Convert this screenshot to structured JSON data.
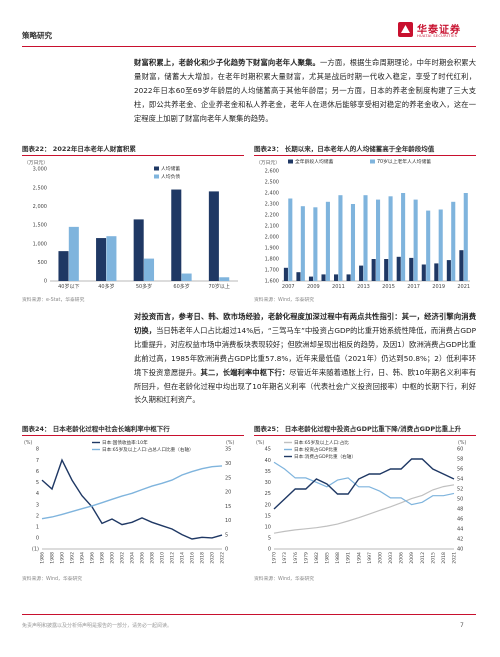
{
  "header": {
    "section": "策略研究",
    "brand_cn": "华泰证券",
    "brand_en": "HUATAI SECURITIES"
  },
  "para1": {
    "bold": "财富积累上，老龄化和少子化趋势下财富向老年人聚集。",
    "text": "一方面，根据生命周期理论，中年时期会积累大量财富，储蓄大大增加，在老年时期积累大量财富，尤其是战后时期一代收入稳定，享受了时代红利，2022年日本60至69岁年龄层的人均储蓄高于其他年龄层；另一方面，日本的养老金制度构建了三大支柱，即公共养老金、企业养老金和私人养老金，老年人在退休后能够享受相对稳定的养老金收入，这在一定程度上加剧了财富向老年人聚集的趋势。"
  },
  "fig22": {
    "title": "图表22：  2022年日本老年人财富积累",
    "unit": "（万日元）",
    "source": "资料来源：e-Stat，华泰研究",
    "chart_data": {
      "type": "bar",
      "categories": [
        "40岁以下",
        "40多岁",
        "50多岁",
        "60多岁",
        "70岁以上"
      ],
      "series": [
        {
          "name": "人均储蓄",
          "color": "#1f3864",
          "values": [
            800,
            1150,
            1650,
            2450,
            2400
          ]
        },
        {
          "name": "人均负债",
          "color": "#7fb4dd",
          "values": [
            1450,
            1200,
            600,
            200,
            100
          ]
        }
      ],
      "ylim": [
        0,
        3000
      ],
      "yticks": [
        "3,000",
        "2,500",
        "2,000",
        "1,500",
        "1,000",
        "500",
        "0"
      ],
      "legend": "top-right"
    }
  },
  "fig23": {
    "title": "图表23：  长期以来，日本老年人的人均储蓄高于全年龄段均值",
    "unit": "（万日元）",
    "source": "资料来源：Wind，华泰研究",
    "chart_data": {
      "type": "bar",
      "categories": [
        "2007",
        "2008",
        "2009",
        "2010",
        "2011",
        "2012",
        "2013",
        "2014",
        "2015",
        "2016",
        "2017",
        "2018",
        "2019",
        "2020",
        "2021"
      ],
      "xticks": [
        "2007",
        "2009",
        "2011",
        "2013",
        "2015",
        "2017",
        "2019",
        "2021"
      ],
      "series": [
        {
          "name": "全年龄段人均储蓄",
          "color": "#1f3864",
          "values": [
            1720,
            1680,
            1640,
            1660,
            1660,
            1660,
            1740,
            1800,
            1800,
            1820,
            1810,
            1750,
            1760,
            1790,
            1880
          ]
        },
        {
          "name": "70岁以上老年人人均储蓄",
          "color": "#7fb4dd",
          "values": [
            2350,
            2280,
            2270,
            2320,
            2380,
            2300,
            2380,
            2340,
            2370,
            2400,
            2340,
            2240,
            2250,
            2320,
            2400
          ]
        }
      ],
      "ylim": [
        1600,
        2600
      ],
      "yticks": [
        "2,600",
        "2,500",
        "2,400",
        "2,300",
        "2,200",
        "2,100",
        "2,000",
        "1,900",
        "1,800",
        "1,700",
        "1,600"
      ],
      "legend": "top"
    }
  },
  "para2": {
    "text1": "对投资而言，参考日、韩、欧市场经验，老龄化程度加深过程中有两点共性指引：其一，经济引擎向消费切换，",
    "text2": "当日韩老年人口占比超过14%后，“三驾马车”中投资占GDP的比重开始系统性降低，而消费占GDP比重提升，对应权益市场中消费板块表现较好；但欧洲却呈现出相反的趋势，及因1）欧洲消费占GDP比重此前过高，1985年欧洲消费占GDP比重57.8%，近年来最低值（2021年）仍达到50.8%；2）低利率环境下投资意愿提升。",
    "bold2": "其二，长端利率中枢下行：",
    "text3": "尽管近年来随着通胀上行，日、韩、欧10年期名义利率有所回升，但在老龄化过程中均出现了10年期名义利率（代表社会广义投资回报率）中枢的长期下行，利好长久期和红利资产。"
  },
  "fig24": {
    "title": "图表24：  日本老龄化过程中社会长端利率中枢下行",
    "unit_left": "(%)",
    "unit_right": "(%)",
    "source": "资料来源：Wind，华泰研究",
    "chart_data": {
      "type": "line",
      "x": [
        "1986",
        "1988",
        "1990",
        "1992",
        "1994",
        "1996",
        "1998",
        "2000",
        "2002",
        "2004",
        "2006",
        "2008",
        "2010",
        "2012",
        "2014",
        "2016",
        "2018",
        "2020",
        "2022"
      ],
      "series": [
        {
          "name": "日本:国债收益率:10年",
          "axis": "left",
          "color": "#1f3864",
          "values": [
            5.2,
            4.4,
            7.0,
            5.2,
            3.8,
            2.8,
            1.3,
            1.7,
            1.2,
            1.4,
            1.8,
            1.4,
            1.1,
            0.8,
            0.3,
            -0.1,
            0.05,
            0.0,
            0.25
          ]
        },
        {
          "name": "日本:65岁及以上人口:占总人口比重（右轴）",
          "axis": "right",
          "color": "#7fb4dd",
          "values": [
            10.6,
            11.2,
            12.1,
            13.1,
            14.1,
            15.1,
            16.2,
            17.4,
            18.5,
            19.5,
            20.8,
            22.0,
            23.0,
            24.1,
            25.9,
            27.1,
            28.1,
            28.8,
            29.1
          ]
        }
      ],
      "ylim_left": [
        -1,
        8
      ],
      "ylim_right": [
        0,
        35
      ],
      "yticks_left": [
        "8",
        "7",
        "6",
        "5",
        "4",
        "3",
        "2",
        "1",
        "0",
        "(1)"
      ],
      "yticks_right": [
        "35",
        "30",
        "25",
        "20",
        "15",
        "10",
        "5",
        "0"
      ]
    }
  },
  "fig25": {
    "title": "图表25：  日本老龄化过程中投资占GDP比重下降/消费占GDP比重上升",
    "unit_left": "(%)",
    "unit_right": "(%)",
    "source": "资料来源：Wind，华泰研究",
    "chart_data": {
      "type": "line",
      "x": [
        "1970",
        "1973",
        "1976",
        "1979",
        "1982",
        "1985",
        "1988",
        "1991",
        "1994",
        "1997",
        "2000",
        "2003",
        "2006",
        "2009",
        "2012",
        "2015",
        "2018",
        "2021"
      ],
      "series": [
        {
          "name": "日本:65岁及以上人口:占比",
          "axis": "left",
          "color": "#c0c0c0",
          "values": [
            7.1,
            7.9,
            8.6,
            9.1,
            9.6,
            10.3,
            11.2,
            12.6,
            14.1,
            15.7,
            17.4,
            19.0,
            20.8,
            22.7,
            24.1,
            26.6,
            28.1,
            28.9
          ]
        },
        {
          "name": "日本:投资占GDP比重",
          "axis": "left",
          "color": "#7fb4dd",
          "values": [
            39,
            36,
            32,
            32,
            30,
            28,
            31,
            32,
            28,
            28,
            26,
            23,
            23,
            20,
            21,
            24,
            24,
            25
          ]
        },
        {
          "name": "日本:消费占GDP比重（右轴）",
          "axis": "right",
          "color": "#1f3864",
          "values": [
            48,
            50,
            52,
            52,
            54,
            53,
            51,
            51,
            54,
            55,
            55,
            56,
            56,
            58,
            58,
            56,
            55,
            54
          ]
        }
      ],
      "ylim_left": [
        0,
        45
      ],
      "ylim_right": [
        40,
        60
      ],
      "yticks_left": [
        "45",
        "40",
        "35",
        "30",
        "25",
        "20",
        "15",
        "10",
        "5",
        "0"
      ],
      "yticks_right": [
        "60",
        "58",
        "56",
        "54",
        "52",
        "50",
        "48",
        "46",
        "44",
        "42",
        "40"
      ]
    }
  },
  "footer": {
    "disclaimer": "免责声明和披露以及分析师声明是报告的一部分，请务必一起阅读。",
    "page": "7"
  }
}
